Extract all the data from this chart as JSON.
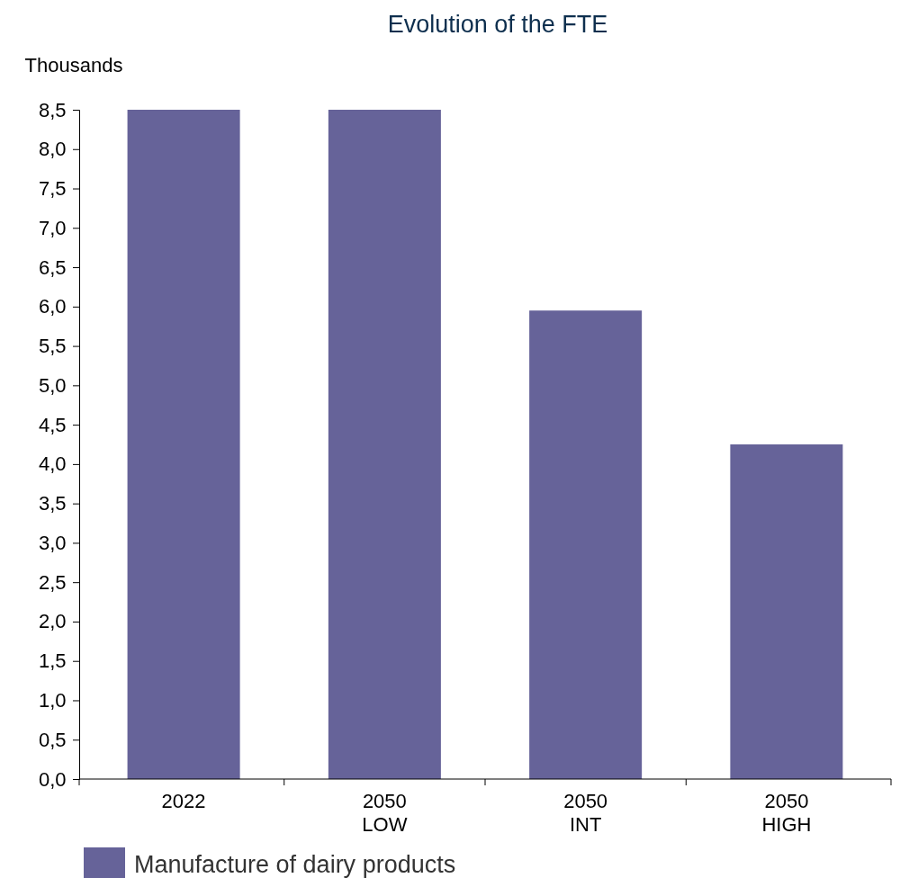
{
  "chart_data": {
    "type": "bar",
    "title": "Evolution of the FTE",
    "ylabel": "Thousands",
    "categories": [
      "2022",
      "2050\nLOW",
      "2050\nINT",
      "2050\nHIGH"
    ],
    "series": [
      {
        "name": "Manufacture of dairy products",
        "color": "#666399",
        "values": [
          8.5,
          8.5,
          5.95,
          4.25
        ]
      }
    ],
    "ylim": [
      0,
      8.5
    ],
    "yticks": [
      {
        "value": 0,
        "label": "0,0"
      },
      {
        "value": 0.5,
        "label": "0,5"
      },
      {
        "value": 1,
        "label": "1,0"
      },
      {
        "value": 1.5,
        "label": "1,5"
      },
      {
        "value": 2,
        "label": "2,0"
      },
      {
        "value": 2.5,
        "label": "2,5"
      },
      {
        "value": 3,
        "label": "3,0"
      },
      {
        "value": 3.5,
        "label": "3,5"
      },
      {
        "value": 4,
        "label": "4,0"
      },
      {
        "value": 4.5,
        "label": "4,5"
      },
      {
        "value": 5,
        "label": "5,0"
      },
      {
        "value": 5.5,
        "label": "5,5"
      },
      {
        "value": 6,
        "label": "6,0"
      },
      {
        "value": 6.5,
        "label": "6,5"
      },
      {
        "value": 7,
        "label": "7,0"
      },
      {
        "value": 7.5,
        "label": "7,5"
      },
      {
        "value": 8,
        "label": "8,0"
      },
      {
        "value": 8.5,
        "label": "8,5"
      }
    ],
    "grid": false,
    "legend": "bottom left"
  }
}
